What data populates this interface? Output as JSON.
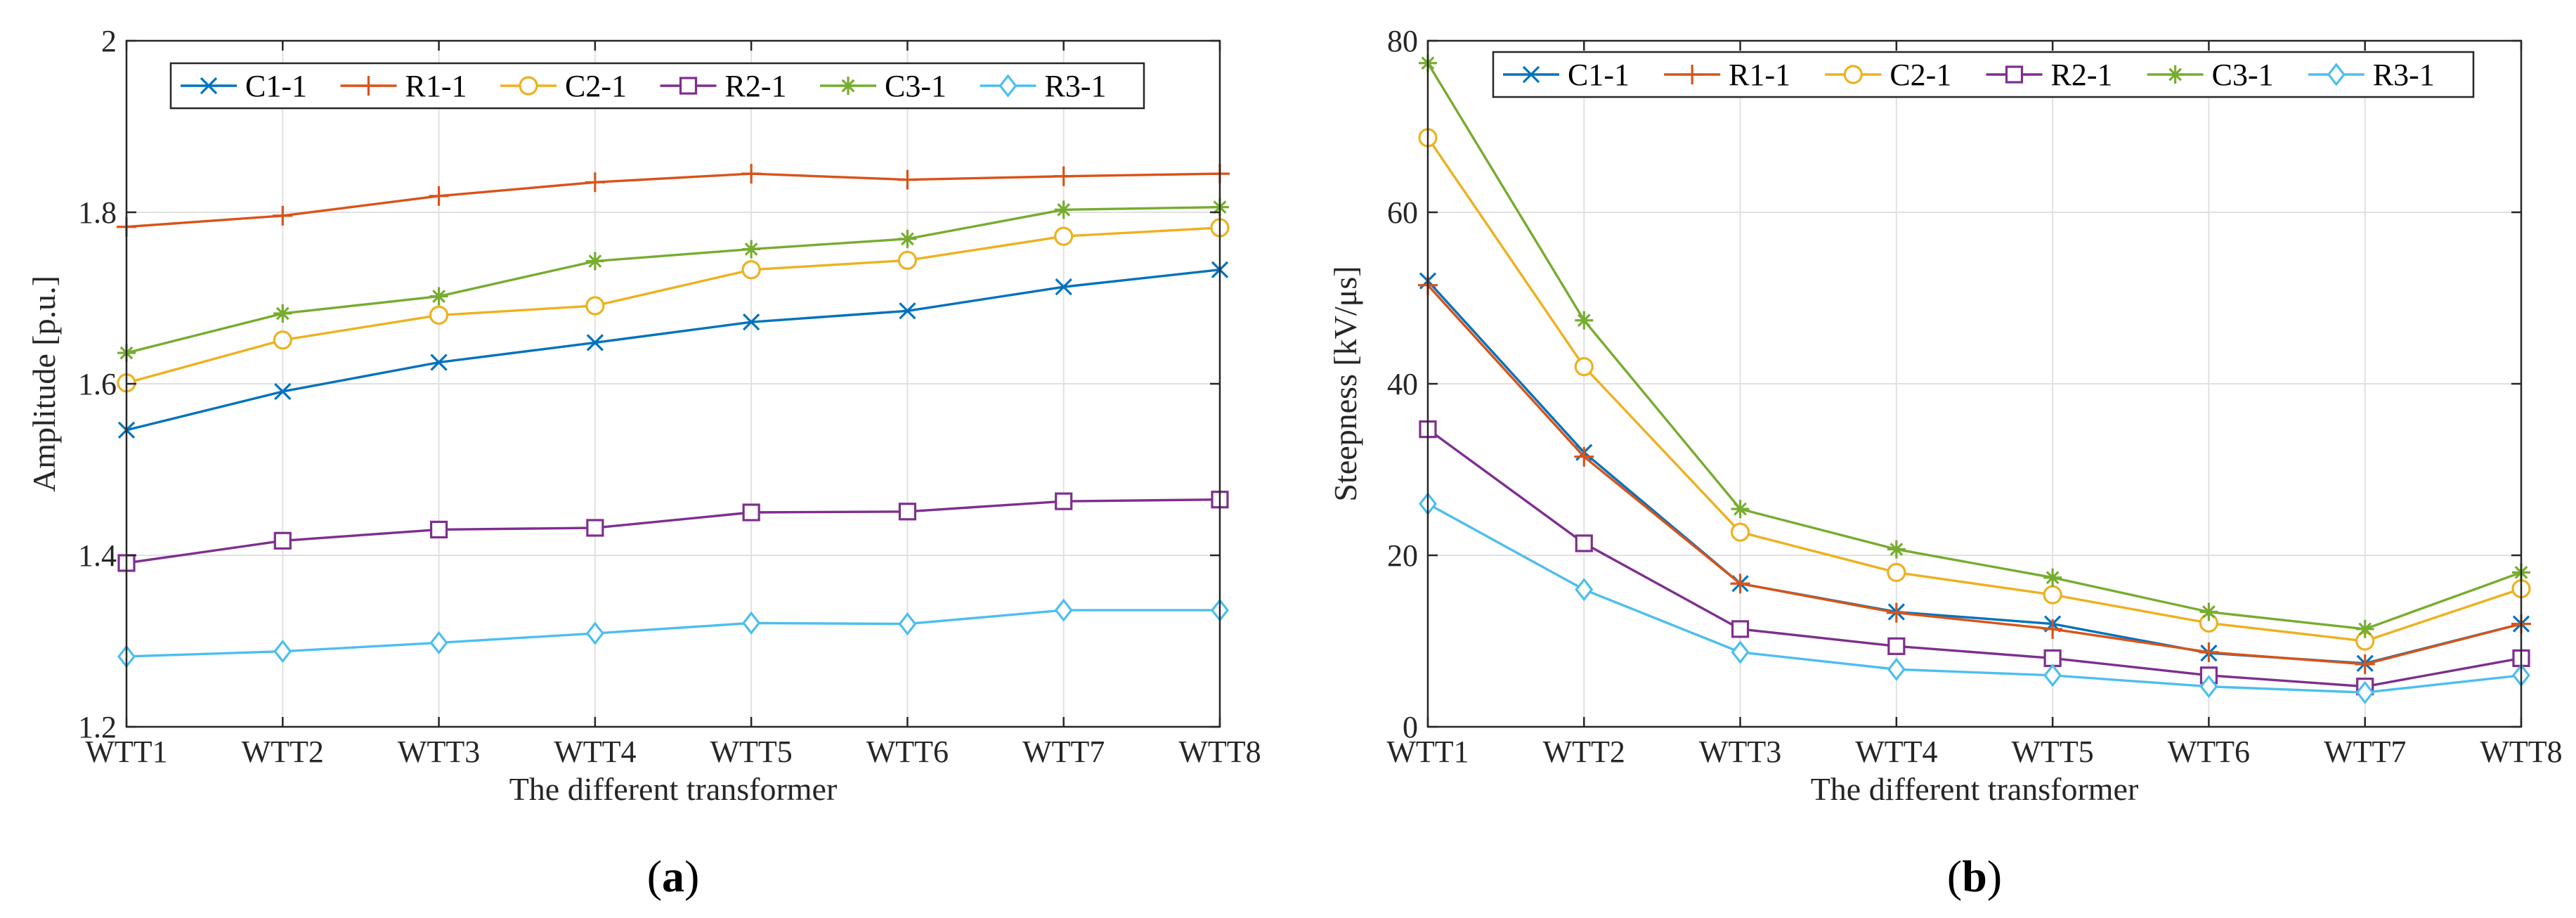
{
  "chart_data": [
    {
      "type": "line",
      "caption": "a",
      "title": "",
      "xlabel": "The different transformer",
      "ylabel": "Amplitude [p.u.]",
      "categories": [
        "WTT1",
        "WTT2",
        "WTT3",
        "WTT4",
        "WTT5",
        "WTT6",
        "WTT7",
        "WTT8"
      ],
      "ylim": [
        1.2,
        2.0
      ],
      "yticks": [
        1.2,
        1.4,
        1.6,
        1.8,
        2.0
      ],
      "ytick_labels": [
        "1.2",
        "1.4",
        "1.6",
        "1.8",
        "2"
      ],
      "grid": true,
      "legend_position": "top",
      "series": [
        {
          "name": "C1-1",
          "color": "#0072BD",
          "marker": "x",
          "values": [
            1.546,
            1.591,
            1.625,
            1.648,
            1.672,
            1.685,
            1.713,
            1.733
          ]
        },
        {
          "name": "R1-1",
          "color": "#D95319",
          "marker": "plus",
          "values": [
            1.783,
            1.796,
            1.819,
            1.835,
            1.845,
            1.838,
            1.842,
            1.845
          ]
        },
        {
          "name": "C2-1",
          "color": "#EDB120",
          "marker": "circle",
          "values": [
            1.601,
            1.651,
            1.68,
            1.691,
            1.733,
            1.744,
            1.772,
            1.782
          ]
        },
        {
          "name": "R2-1",
          "color": "#7E2F8E",
          "marker": "square",
          "values": [
            1.391,
            1.417,
            1.43,
            1.432,
            1.45,
            1.451,
            1.463,
            1.465
          ]
        },
        {
          "name": "C3-1",
          "color": "#77AC30",
          "marker": "star",
          "values": [
            1.636,
            1.682,
            1.702,
            1.743,
            1.757,
            1.769,
            1.803,
            1.806
          ]
        },
        {
          "name": "R3-1",
          "color": "#4DBEEE",
          "marker": "diamond",
          "values": [
            1.282,
            1.288,
            1.298,
            1.309,
            1.321,
            1.32,
            1.336,
            1.336
          ]
        }
      ]
    },
    {
      "type": "line",
      "caption": "b",
      "title": "",
      "xlabel": "The different transformer",
      "ylabel": "Steepness [kV/μs]",
      "categories": [
        "WTT1",
        "WTT2",
        "WTT3",
        "WTT4",
        "WTT5",
        "WTT6",
        "WTT7",
        "WTT8"
      ],
      "ylim": [
        0,
        80
      ],
      "yticks": [
        0,
        20,
        40,
        60,
        80
      ],
      "ytick_labels": [
        "0",
        "20",
        "40",
        "60",
        "80"
      ],
      "grid": true,
      "legend_position": "top",
      "series": [
        {
          "name": "C1-1",
          "color": "#0072BD",
          "marker": "x",
          "values": [
            52.0,
            32.0,
            16.7,
            13.4,
            12.0,
            8.6,
            7.4,
            12.0
          ]
        },
        {
          "name": "R1-1",
          "color": "#D95319",
          "marker": "plus",
          "values": [
            51.5,
            31.5,
            16.7,
            13.3,
            11.4,
            8.7,
            7.3,
            12.0
          ]
        },
        {
          "name": "C2-1",
          "color": "#EDB120",
          "marker": "circle",
          "values": [
            68.7,
            42.0,
            22.7,
            18.0,
            15.4,
            12.1,
            10.0,
            16.1
          ]
        },
        {
          "name": "R2-1",
          "color": "#7E2F8E",
          "marker": "square",
          "values": [
            34.7,
            21.4,
            11.4,
            9.4,
            8.0,
            6.0,
            4.7,
            8.0
          ]
        },
        {
          "name": "C3-1",
          "color": "#77AC30",
          "marker": "star",
          "values": [
            77.4,
            47.4,
            25.4,
            20.7,
            17.4,
            13.4,
            11.4,
            18.0
          ]
        },
        {
          "name": "R3-1",
          "color": "#4DBEEE",
          "marker": "diamond",
          "values": [
            26.0,
            16.0,
            8.7,
            6.7,
            6.0,
            4.7,
            4.0,
            6.0
          ]
        }
      ]
    }
  ]
}
